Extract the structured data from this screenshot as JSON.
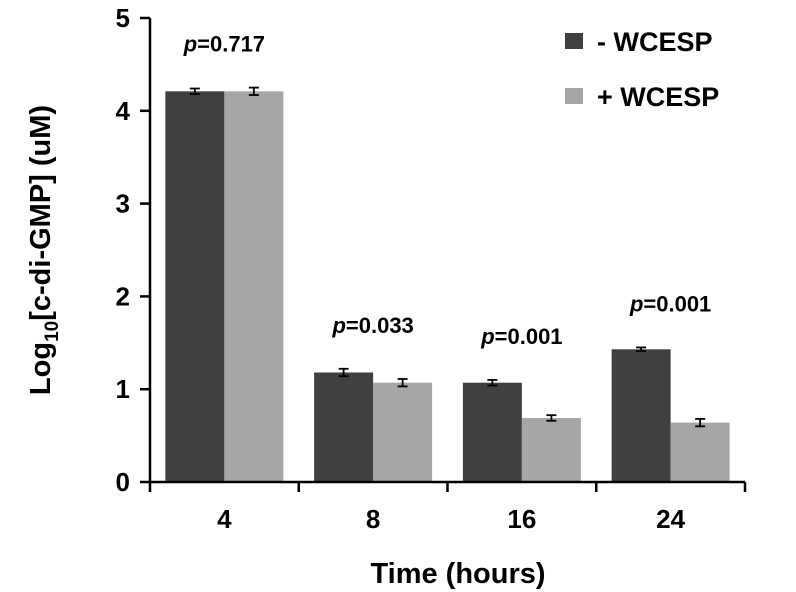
{
  "chart_data": {
    "type": "bar",
    "categories": [
      "4",
      "8",
      "16",
      "24"
    ],
    "series": [
      {
        "name": "- WCESP",
        "values": [
          4.21,
          1.18,
          1.07,
          1.43
        ],
        "errors": [
          0.03,
          0.04,
          0.03,
          0.02
        ],
        "color": "#404040"
      },
      {
        "name": "+ WCESP",
        "values": [
          4.21,
          1.07,
          0.69,
          0.64
        ],
        "errors": [
          0.04,
          0.04,
          0.03,
          0.04
        ],
        "color": "#a6a6a6"
      }
    ],
    "annotations": [
      {
        "category": "4",
        "label": "=0.717"
      },
      {
        "category": "8",
        "label": "=0.033"
      },
      {
        "category": "16",
        "label": "=0.001"
      },
      {
        "category": "24",
        "label": "=0.001"
      }
    ],
    "p_symbol": "p",
    "xlabel": "Time (hours)",
    "ylabel": {
      "prefix": "Log",
      "subscript": "10",
      "suffix": "[c-di-GMP] (uM)"
    },
    "ylim": [
      0,
      5
    ],
    "yticks": [
      "0",
      "1",
      "2",
      "3",
      "4",
      "5"
    ],
    "grid": false,
    "legend_position": "top-right"
  }
}
